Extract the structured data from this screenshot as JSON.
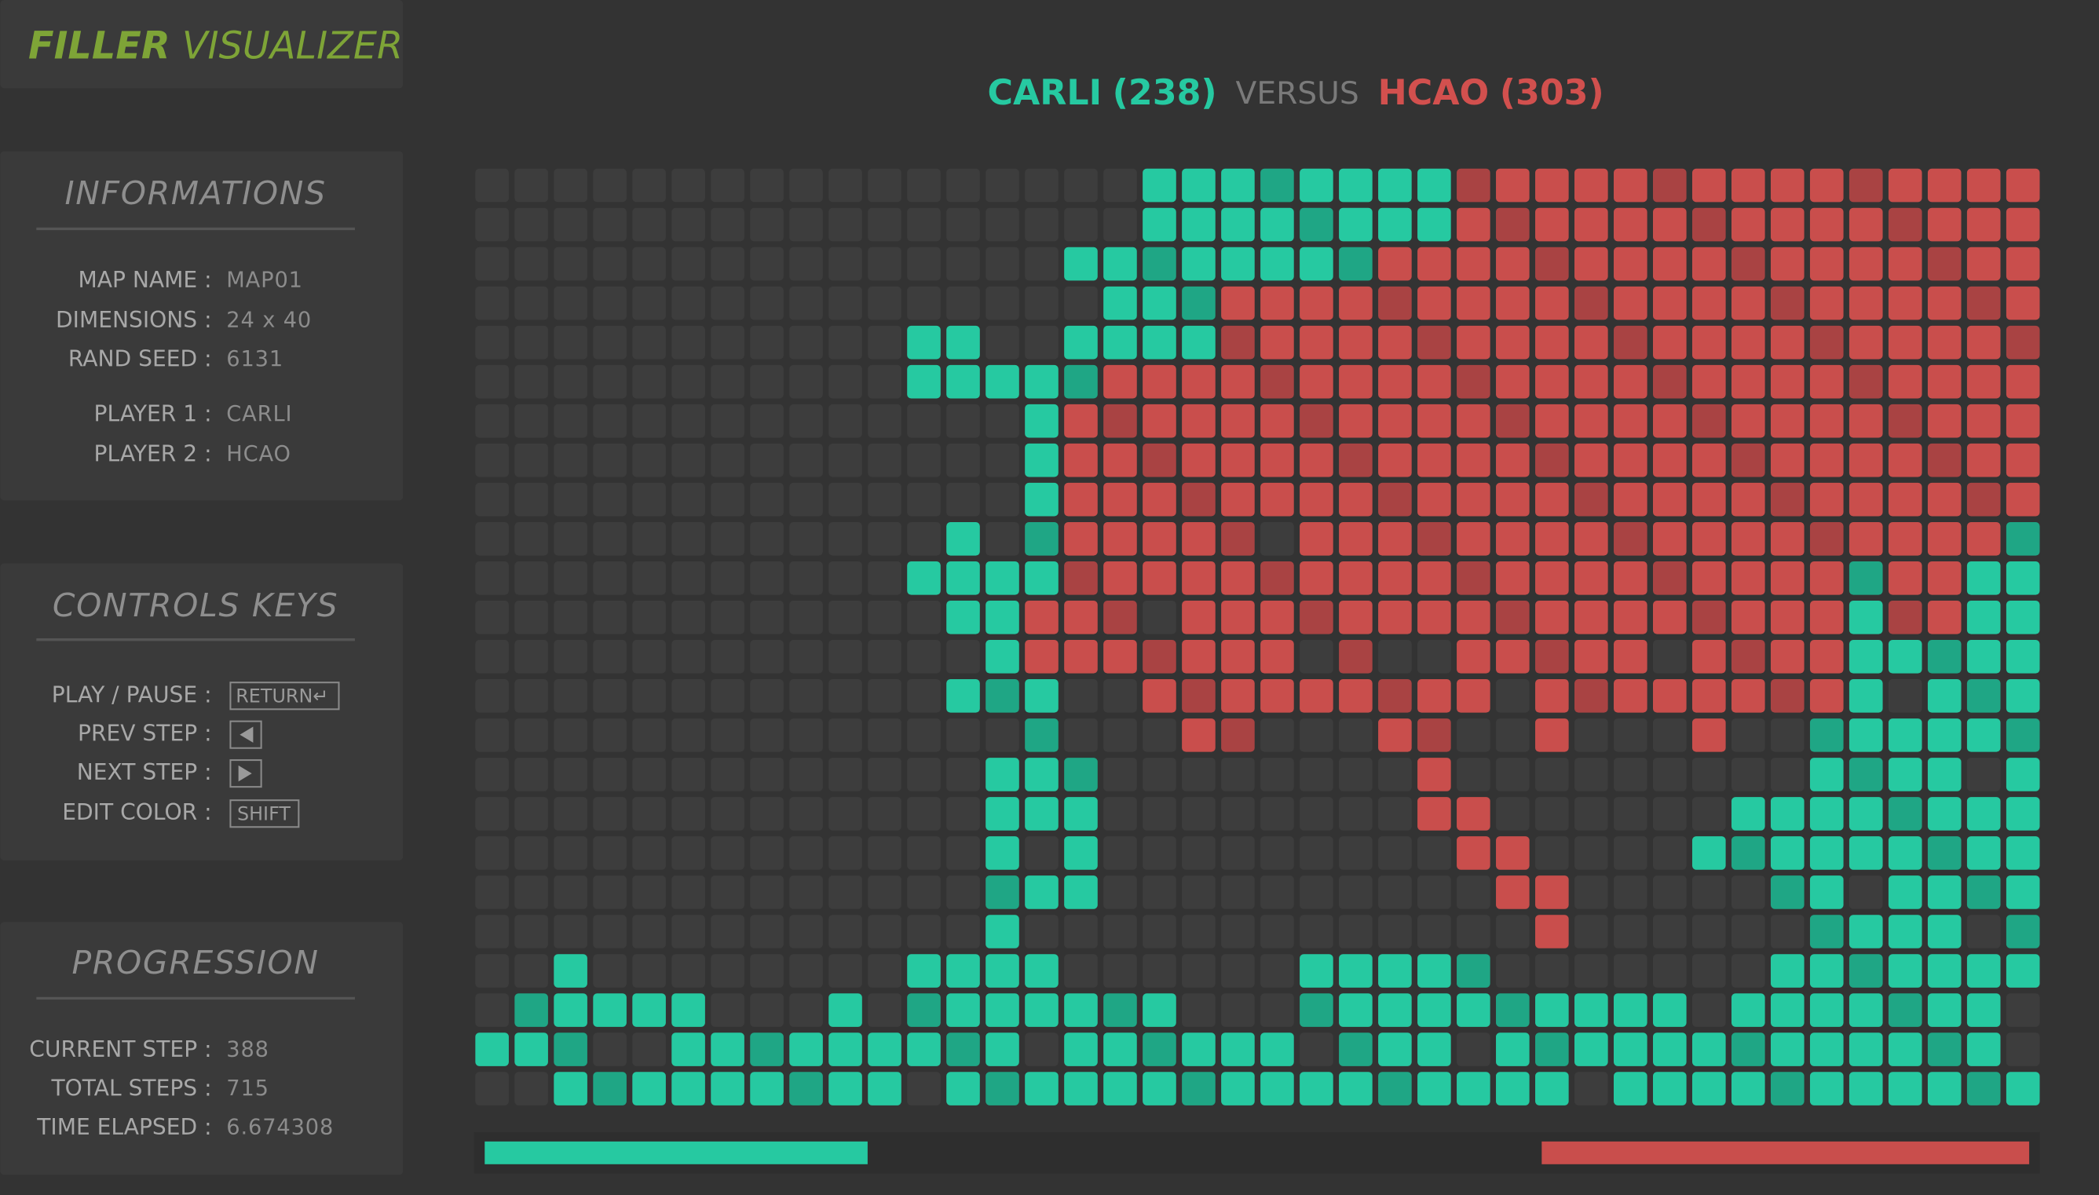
{
  "header": {
    "title_bold": "FILLER",
    "title_rest": "VISUALIZER"
  },
  "versus": {
    "player1": {
      "name": "CARLI",
      "score": 238,
      "score_label": "(238)"
    },
    "word": "VERSUS",
    "player2": {
      "name": "HCAO",
      "score": 303,
      "score_label": "(303)"
    }
  },
  "informations": {
    "title": "INFORMATIONS",
    "rows": [
      {
        "label": "MAP NAME :",
        "value": "MAP01"
      },
      {
        "label": "DIMENSIONS :",
        "value": "24 x 40"
      },
      {
        "label": "RAND SEED :",
        "value": "6131"
      },
      {
        "label": "PLAYER 1 :",
        "value": "CARLI"
      },
      {
        "label": "PLAYER 2 :",
        "value": "HCAO"
      }
    ]
  },
  "controls": {
    "title": "CONTROLS KEYS",
    "rows": [
      {
        "label": "PLAY / PAUSE :",
        "key": "RETURN↵"
      },
      {
        "label": "PREV STEP :"
      },
      {
        "label": "NEXT STEP :"
      },
      {
        "label": "EDIT COLOR :",
        "key": "SHIFT"
      }
    ]
  },
  "progression": {
    "title": "PROGRESSION",
    "rows": [
      {
        "label": "CURRENT STEP :",
        "value": "388"
      },
      {
        "label": "TOTAL STEPS :",
        "value": "715"
      },
      {
        "label": "TIME ELAPSED :",
        "value": "6.674308"
      }
    ]
  }
}
